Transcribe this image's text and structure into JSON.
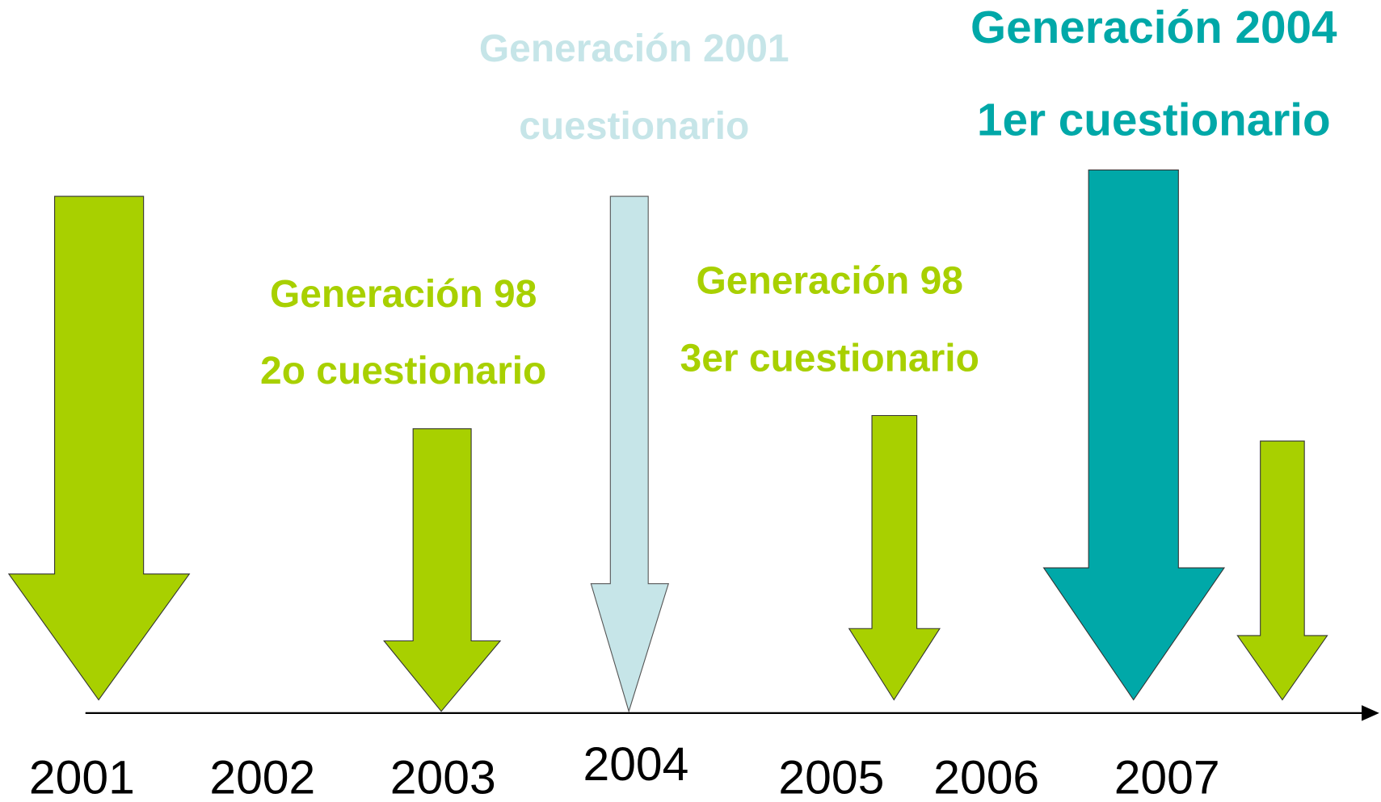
{
  "labels": [
    {
      "title": "Generación 2001",
      "subtitle": "cuestionario"
    },
    {
      "title": "Generación 2004",
      "subtitle": "1er cuestionario"
    },
    {
      "title": "Generación 98",
      "subtitle": "2o cuestionario"
    },
    {
      "title": "Generación 98",
      "subtitle": "3er cuestionario"
    }
  ],
  "years": [
    "2001",
    "2002",
    "2003",
    "2004",
    "2005",
    "2006",
    "2007"
  ]
}
